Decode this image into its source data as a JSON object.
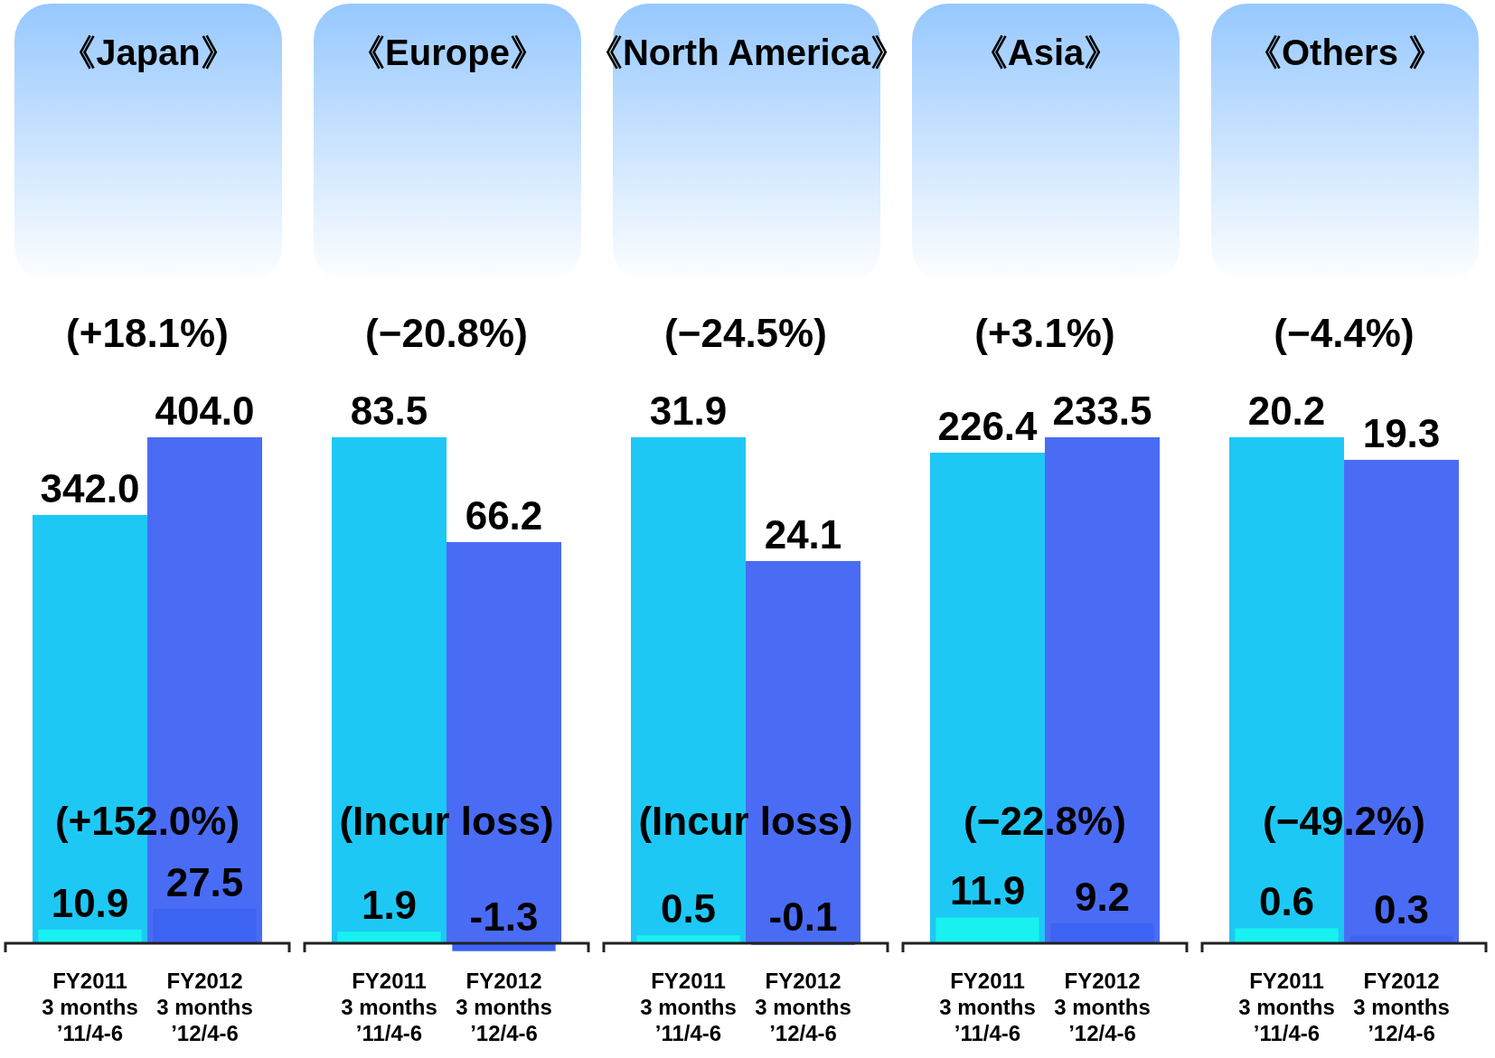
{
  "chart_data": [
    {
      "type": "bar",
      "title": "《Japan》",
      "categories": [
        "FY2011\n3 months\n’11/4-6",
        "FY2012\n3 months\n’12/4-6"
      ],
      "annotations": [
        "(+18.1%)",
        "(+152.0%)"
      ],
      "series": [
        {
          "colors": [
            "#1ec8f5",
            "#4a6cf5"
          ],
          "values": [
            342.0,
            404.0
          ],
          "value_labels": [
            "342.0",
            "404.0"
          ]
        },
        {
          "colors": [
            "#19f0f0",
            "#3d63f5"
          ],
          "values": [
            10.9,
            27.5
          ],
          "value_labels": [
            "10.9",
            "27.5"
          ]
        }
      ]
    },
    {
      "type": "bar",
      "title": "《Europe》",
      "categories": [
        "FY2011\n3 months\n’11/4-6",
        "FY2012\n3 months\n’12/4-6"
      ],
      "annotations": [
        "(−20.8%)",
        "(Incur loss)"
      ],
      "series": [
        {
          "colors": [
            "#1ec8f5",
            "#4a6cf5"
          ],
          "values": [
            83.5,
            66.2
          ],
          "value_labels": [
            "83.5",
            "66.2"
          ]
        },
        {
          "colors": [
            "#19f0f0",
            "#3d63f5"
          ],
          "values": [
            1.9,
            -1.3
          ],
          "value_labels": [
            "1.9",
            "-1.3"
          ]
        }
      ]
    },
    {
      "type": "bar",
      "title": "《North America》",
      "categories": [
        "FY2011\n3 months\n’11/4-6",
        "FY2012\n3 months\n’12/4-6"
      ],
      "annotations": [
        "(−24.5%)",
        "(Incur loss)"
      ],
      "series": [
        {
          "colors": [
            "#1ec8f5",
            "#4a6cf5"
          ],
          "values": [
            31.9,
            24.1
          ],
          "value_labels": [
            "31.9",
            "24.1"
          ]
        },
        {
          "colors": [
            "#19f0f0",
            "#3d63f5"
          ],
          "values": [
            0.5,
            -0.1
          ],
          "value_labels": [
            "0.5",
            "-0.1"
          ]
        }
      ]
    },
    {
      "type": "bar",
      "title": "《Asia》",
      "categories": [
        "FY2011\n3 months\n’11/4-6",
        "FY2012\n3 months\n’12/4-6"
      ],
      "annotations": [
        "(+3.1%)",
        "(−22.8%)"
      ],
      "series": [
        {
          "colors": [
            "#1ec8f5",
            "#4a6cf5"
          ],
          "values": [
            226.4,
            233.5
          ],
          "value_labels": [
            "226.4",
            "233.5"
          ]
        },
        {
          "colors": [
            "#19f0f0",
            "#3d63f5"
          ],
          "values": [
            11.9,
            9.2
          ],
          "value_labels": [
            "11.9",
            "9.2"
          ]
        }
      ]
    },
    {
      "type": "bar",
      "title": "《Others 》",
      "categories": [
        "FY2011\n3 months\n’11/4-6",
        "FY2012\n3 months\n’12/4-6"
      ],
      "annotations": [
        "(−4.4%)",
        "(−49.2%)"
      ],
      "series": [
        {
          "colors": [
            "#1ec8f5",
            "#4a6cf5"
          ],
          "values": [
            20.2,
            19.3
          ],
          "value_labels": [
            "20.2",
            "19.3"
          ]
        },
        {
          "colors": [
            "#19f0f0",
            "#3d63f5"
          ],
          "values": [
            0.6,
            0.3
          ],
          "value_labels": [
            "0.6",
            "0.3"
          ]
        }
      ]
    }
  ]
}
